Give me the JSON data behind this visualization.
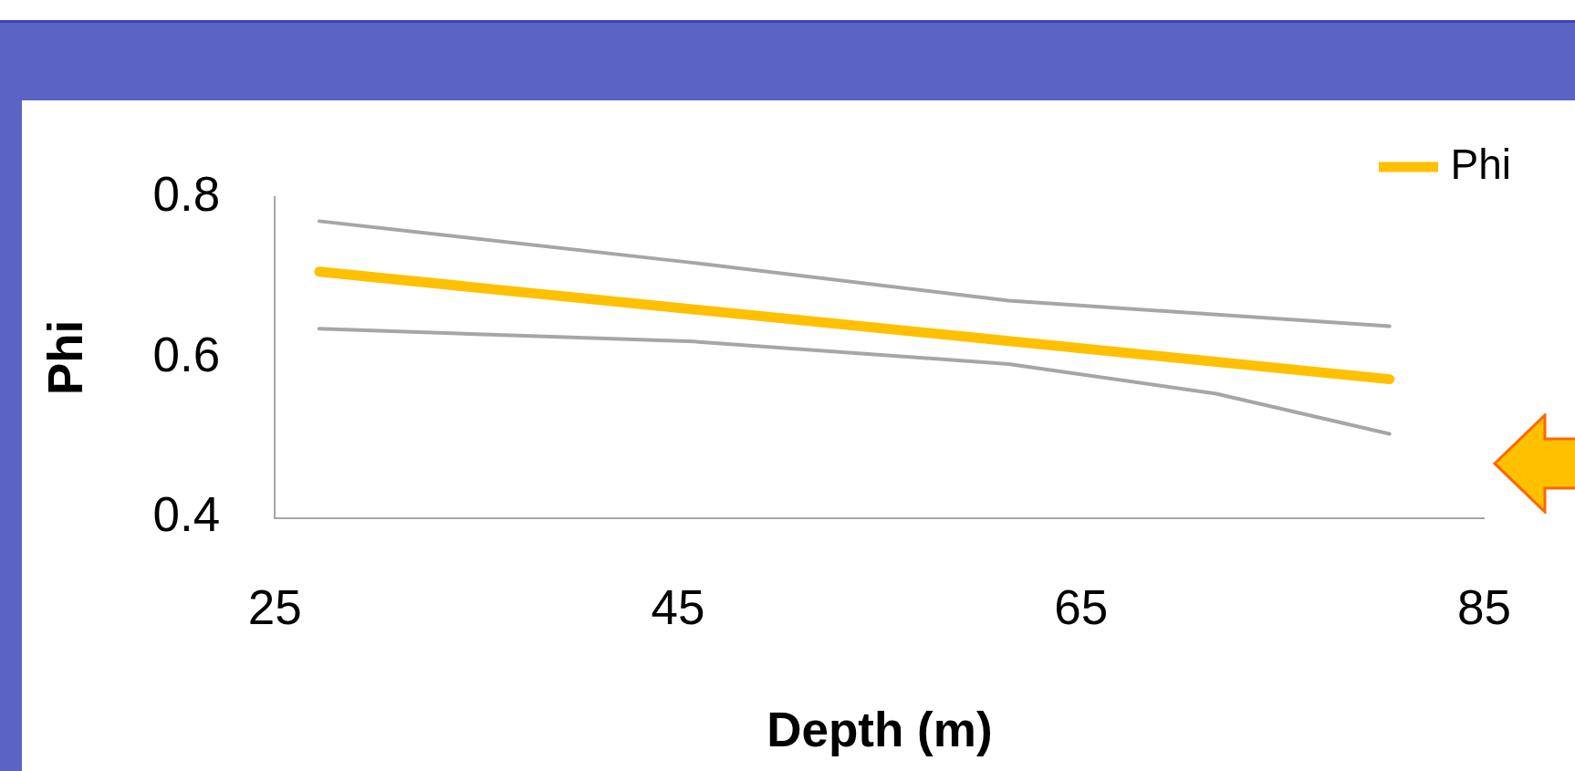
{
  "chart_data": {
    "type": "line",
    "xlabel": "Depth (m)",
    "ylabel": "Phi",
    "xlim": [
      25,
      85
    ],
    "xticks": [
      25,
      45,
      65,
      85
    ],
    "ylim": [
      0.4,
      0.8
    ],
    "yticks": [
      0.4,
      0.6,
      0.8
    ],
    "legend": "top right",
    "series": [
      {
        "name": "Phi",
        "color": "#ffc000",
        "x": [
          27.2,
          80.3
        ],
        "values": [
          0.707,
          0.573
        ]
      },
      {
        "color": "#a6a6a6",
        "x": [
          27.2,
          45.8,
          61.4,
          80.3
        ],
        "values": [
          0.77,
          0.718,
          0.671,
          0.639
        ]
      },
      {
        "color": "#a6a6a6",
        "x": [
          27.2,
          45.8,
          61.4,
          71.7,
          80.3
        ],
        "values": [
          0.636,
          0.62,
          0.592,
          0.555,
          0.505
        ]
      }
    ]
  }
}
